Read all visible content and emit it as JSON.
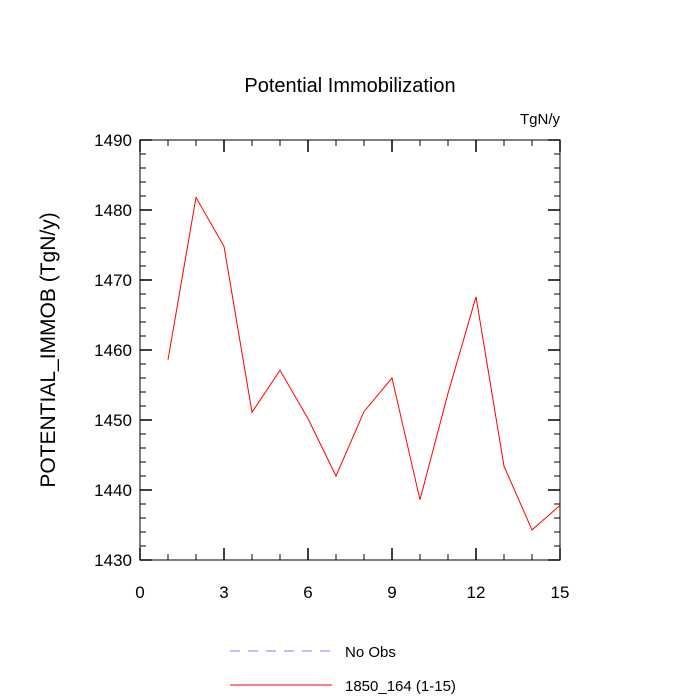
{
  "chart_data": {
    "type": "line",
    "title": "Potential Immobilization",
    "units_label": "TgN/y",
    "ylabel": "POTENTIAL_IMMOB  (TgN/y)",
    "xlabel": "",
    "xlim": [
      0,
      15
    ],
    "ylim": [
      1430,
      1490
    ],
    "x_ticks": [
      0,
      3,
      6,
      9,
      12,
      15
    ],
    "y_ticks": [
      1430,
      1440,
      1450,
      1460,
      1470,
      1480,
      1490
    ],
    "grid": false,
    "legend_position": "bottom",
    "series": [
      {
        "name": "1850_164 (1-15)",
        "color": "#ff0000",
        "style": "solid",
        "x": [
          1,
          2,
          3,
          4,
          5,
          6,
          7,
          8,
          9,
          10,
          11,
          12,
          13,
          14,
          15
        ],
        "values": [
          1458.6,
          1481.8,
          1474.8,
          1451.1,
          1457.1,
          1450.2,
          1442.0,
          1451.2,
          1456.0,
          1438.6,
          1453.8,
          1467.6,
          1443.4,
          1434.3,
          1437.8
        ]
      }
    ],
    "legend": [
      {
        "name": "No Obs",
        "color": "#8080ff",
        "style": "dashed"
      },
      {
        "name": "1850_164 (1-15)",
        "color": "#ff0000",
        "style": "solid"
      }
    ]
  }
}
